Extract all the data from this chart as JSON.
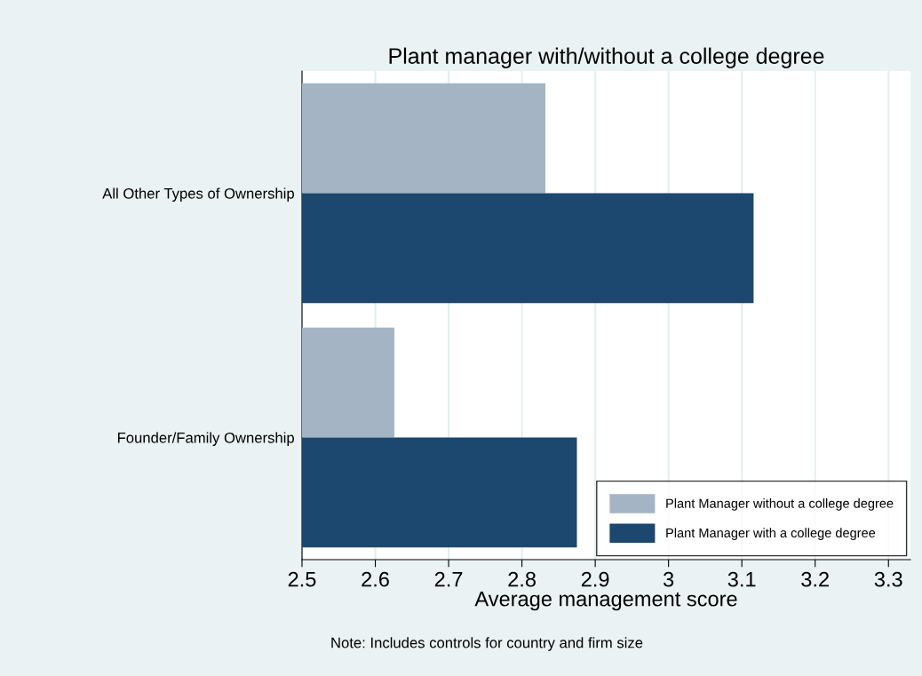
{
  "chart_data": {
    "type": "bar",
    "orientation": "horizontal",
    "title": "Plant manager with/without a college degree",
    "xlabel": "Average management score",
    "categories": [
      "All Other Types of Ownership",
      "Founder/Family Ownership"
    ],
    "series": [
      {
        "name": "Plant Manager without a college degree",
        "color": "#a4b4c4",
        "values": [
          2.832,
          2.626
        ]
      },
      {
        "name": "Plant Manager with a college degree",
        "color": "#1c476e",
        "values": [
          3.116,
          2.875
        ]
      }
    ],
    "xlim": [
      2.5,
      3.33
    ],
    "xticks": [
      2.5,
      2.6,
      2.7,
      2.8,
      2.9,
      3,
      3.1,
      3.2,
      3.3
    ],
    "grid": "x",
    "legend": "bottom right",
    "annotations": [
      "Note: Includes controls for country and firm size"
    ]
  }
}
